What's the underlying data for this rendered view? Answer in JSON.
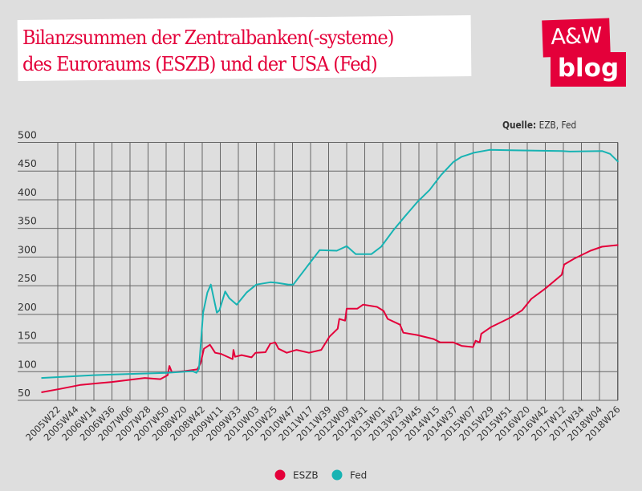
{
  "title_line1": "Bilanzsummen der Zentralbanken(-systeme)",
  "title_line2": "des Euroraums (ESZB) und der USA (Fed)",
  "logo": {
    "line1": "A&W",
    "line2": "blog"
  },
  "source_label": "Quelle:",
  "source_value": "EZB, Fed",
  "colors": {
    "background": "#dedede",
    "ESZB": "#e4003a",
    "Fed": "#17b3b3",
    "brand": "#e4003a"
  },
  "chart_data": {
    "type": "line",
    "title": "Bilanzsummen der Zentralbanken(-systeme) des Euroraums (ESZB) und der USA (Fed)",
    "xlabel": "",
    "ylabel": "",
    "ylim": [
      50,
      500
    ],
    "yticks": [
      "500",
      "450",
      "400",
      "350",
      "300",
      "250",
      "200",
      "150",
      "100",
      "50"
    ],
    "xticks": [
      "2005W22",
      "2005W44",
      "2006W14",
      "2006W36",
      "2007W06",
      "2007W28",
      "2007W50",
      "2008W20",
      "2008W42",
      "2009W11",
      "2009W33",
      "2010W03",
      "2010W25",
      "2010W47",
      "2011W17",
      "2011W39",
      "2012W09",
      "2012W31",
      "2013W01",
      "2013W23",
      "2013W45",
      "2014W15",
      "2014W37",
      "2015W07",
      "2015W29",
      "2015W51",
      "2016W20",
      "2016W42",
      "2017W12",
      "2017W34",
      "2018W04",
      "2018W26"
    ],
    "grid": true,
    "legend": "bottom",
    "series": [
      {
        "name": "ESZB",
        "points": [
          [
            "2005W02",
            64
          ],
          [
            "2005W25",
            70
          ],
          [
            "2005W50",
            77
          ],
          [
            "2006W36",
            82
          ],
          [
            "2007W24",
            89
          ],
          [
            "2007W43",
            87
          ],
          [
            "2007W52",
            94
          ],
          [
            "2008W02",
            110
          ],
          [
            "2008W05",
            99
          ],
          [
            "2008W20",
            101
          ],
          [
            "2008W36",
            104
          ],
          [
            "2008W40",
            115
          ],
          [
            "2008W44",
            140
          ],
          [
            "2008W51",
            147
          ],
          [
            "2009W05",
            133
          ],
          [
            "2009W12",
            131
          ],
          [
            "2009W26",
            122
          ],
          [
            "2009W27",
            138
          ],
          [
            "2009W29",
            126
          ],
          [
            "2009W37",
            129
          ],
          [
            "2009W49",
            125
          ],
          [
            "2010W02",
            133
          ],
          [
            "2010W14",
            134
          ],
          [
            "2010W20",
            149
          ],
          [
            "2010W26",
            151
          ],
          [
            "2010W30",
            140
          ],
          [
            "2010W40",
            133
          ],
          [
            "2010W52",
            138
          ],
          [
            "2011W15",
            133
          ],
          [
            "2011W30",
            138
          ],
          [
            "2011W40",
            161
          ],
          [
            "2011W50",
            175
          ],
          [
            "2011W52",
            192
          ],
          [
            "2012W07",
            189
          ],
          [
            "2012W09",
            210
          ],
          [
            "2012W22",
            210
          ],
          [
            "2012W29",
            217
          ],
          [
            "2012W46",
            213
          ],
          [
            "2013W02",
            206
          ],
          [
            "2013W07",
            192
          ],
          [
            "2013W22",
            182
          ],
          [
            "2013W26",
            168
          ],
          [
            "2013W43",
            164
          ],
          [
            "2014W11",
            157
          ],
          [
            "2014W19",
            151
          ],
          [
            "2014W35",
            151
          ],
          [
            "2014W45",
            145
          ],
          [
            "2015W07",
            143
          ],
          [
            "2015W10",
            154
          ],
          [
            "2015W15",
            151
          ],
          [
            "2015W17",
            166
          ],
          [
            "2015W29",
            178
          ],
          [
            "2015W52",
            194
          ],
          [
            "2016W14",
            207
          ],
          [
            "2016W25",
            227
          ],
          [
            "2016W42",
            245
          ],
          [
            "2017W10",
            269
          ],
          [
            "2017W13",
            287
          ],
          [
            "2017W25",
            297
          ],
          [
            "2017W45",
            311
          ],
          [
            "2018W07",
            318
          ],
          [
            "2018W27",
            321
          ]
        ]
      },
      {
        "name": "Fed",
        "points": [
          [
            "2005W02",
            89
          ],
          [
            "2006W14",
            94
          ],
          [
            "2007W06",
            96
          ],
          [
            "2007W50",
            98
          ],
          [
            "2008W30",
            101
          ],
          [
            "2008W35",
            98
          ],
          [
            "2008W38",
            105
          ],
          [
            "2008W43",
            203
          ],
          [
            "2008W48",
            238
          ],
          [
            "2008W52",
            252
          ],
          [
            "2009W07",
            203
          ],
          [
            "2009W10",
            207
          ],
          [
            "2009W17",
            240
          ],
          [
            "2009W22",
            228
          ],
          [
            "2009W31",
            217
          ],
          [
            "2009W43",
            238
          ],
          [
            "2010W03",
            252
          ],
          [
            "2010W20",
            256
          ],
          [
            "2010W28",
            255
          ],
          [
            "2010W42",
            252
          ],
          [
            "2010W48",
            252
          ],
          [
            "2011W20",
            297
          ],
          [
            "2011W28",
            312
          ],
          [
            "2011W49",
            311
          ],
          [
            "2012W09",
            319
          ],
          [
            "2012W20",
            305
          ],
          [
            "2012W39",
            305
          ],
          [
            "2012W51",
            318
          ],
          [
            "2013W14",
            347
          ],
          [
            "2013W28",
            371
          ],
          [
            "2013W43",
            396
          ],
          [
            "2014W06",
            417
          ],
          [
            "2014W20",
            443
          ],
          [
            "2014W35",
            466
          ],
          [
            "2014W45",
            475
          ],
          [
            "2015W08",
            482
          ],
          [
            "2015W27",
            487
          ],
          [
            "2016W14",
            486
          ],
          [
            "2017W10",
            485
          ],
          [
            "2017W20",
            484
          ],
          [
            "2018W07",
            485
          ],
          [
            "2018W17",
            480
          ],
          [
            "2018W27",
            466
          ]
        ]
      }
    ]
  }
}
